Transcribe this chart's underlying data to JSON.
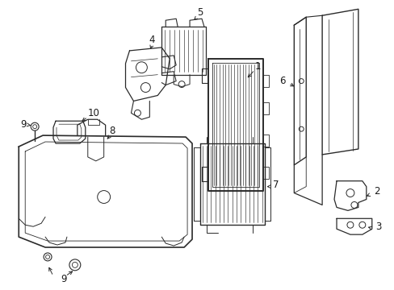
{
  "background_color": "#ffffff",
  "line_color": "#2a2a2a",
  "text_color": "#1a1a1a",
  "figsize": [
    4.89,
    3.6
  ],
  "dpi": 100
}
